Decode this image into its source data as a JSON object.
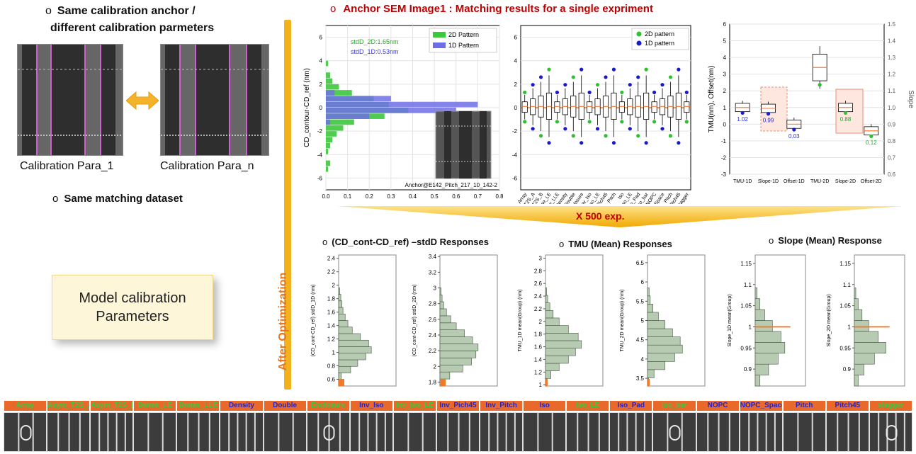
{
  "left_panel": {
    "bullet1_line1": "Same calibration anchor /",
    "bullet1_line2": "different calibration parmeters",
    "caption_left": "Calibration Para_1",
    "caption_right": "Calibration Para_n",
    "bullet2": "Same matching dataset",
    "model_box_line1": "Model calibration",
    "model_box_line2": "Parameters",
    "bullet_glyph": "o"
  },
  "header": {
    "title": "Anchor SEM Image1 : Matching results for a single expriment"
  },
  "after_optimization": "After Optimization",
  "arrow_label": "X 500 exp.",
  "section_titles": {
    "std": "(CD_cont-CD_ref) –stdD Responses",
    "tmu": "TMU (Mean) Responses",
    "slope": "Slope (Mean) Response"
  },
  "chart_data": [
    {
      "type": "bar",
      "orientation": "horizontal-histogram",
      "ylabel": "CD_contour-CD_ref (nm)",
      "ylim": [
        -7,
        7
      ],
      "xlim": [
        0,
        0.8
      ],
      "yticks": [
        "6",
        "4",
        "2",
        "0",
        "-2",
        "-4",
        "-6"
      ],
      "xticks": [
        "0.0",
        "0.1",
        "0.2",
        "0.3",
        "0.4",
        "0.5",
        "0.6",
        "0.7",
        "0.8"
      ],
      "series": [
        {
          "name": "2D Pattern",
          "color": "#3cc83c",
          "x": [
            -5.25,
            -4.75,
            -3.75,
            -3.25,
            -2.75,
            -2.25,
            -1.75,
            -1.25,
            -0.75,
            -0.25,
            0.25,
            0.75,
            1.25,
            1.75,
            2.25,
            2.75,
            3.75
          ],
          "values": [
            0.01,
            0.02,
            0.01,
            0.02,
            0.03,
            0.05,
            0.08,
            0.13,
            0.27,
            0.38,
            0.29,
            0.22,
            0.12,
            0.06,
            0.03,
            0.02,
            0.01
          ]
        },
        {
          "name": "1D Pattern",
          "color": "#6e6ee8",
          "x": [
            -1.25,
            -0.75,
            -0.25,
            0.25,
            0.75,
            1.25
          ],
          "values": [
            0.02,
            0.2,
            0.6,
            0.7,
            0.3,
            0.04
          ]
        }
      ],
      "annotations": [
        "stdD_2D:1.65nm",
        "stdD_1D:0.53nm"
      ],
      "inset_caption": "Anchor@E142_Pitch_217_10_142-2"
    },
    {
      "type": "box",
      "ylim": [
        -7,
        7
      ],
      "yticks": [
        "6",
        "4",
        "2",
        "0",
        "-2",
        "-4",
        "-6"
      ],
      "categories": [
        "Array",
        "Asym_T2S_A",
        "Asym_T2S_B",
        "Dense_LE",
        "Dense_LLE",
        "Density",
        "Double",
        "Enclosure",
        "Inv_Iso",
        "Inv_Iso_LE",
        "Inv_Pich45",
        "Inv_Pitch",
        "Iso",
        "Iso_LE",
        "Iso_Pad",
        "Iso_bar",
        "NOPC",
        "NOPC_Space",
        "Pitch",
        "Pitch45",
        "stagger"
      ],
      "legend": [
        "2D pattern",
        "1D pattern"
      ]
    },
    {
      "type": "box",
      "ylabel": "TMU(nm), Offset(nm)",
      "ylabel_right": "Slope",
      "ylim": [
        -3,
        6
      ],
      "yticks": [
        "6",
        "5",
        "4",
        "3",
        "2",
        "1",
        "0",
        "-1",
        "-2",
        "-3"
      ],
      "yticks_right": [
        "1.5",
        "1.4",
        "1.3",
        "1.2",
        "1.1",
        "1.0",
        "0.9",
        "0.8",
        "0.7",
        "0.6"
      ],
      "categories": [
        "TMU-1D",
        "Slope-1D",
        "Offset-1D",
        "TMU-2D",
        "Slope-2D",
        "Offset-2D"
      ],
      "value_labels": [
        "1.02",
        "0.99",
        "0.03",
        "",
        "0.88",
        "0.12"
      ]
    },
    {
      "type": "bar",
      "orientation": "horizontal-histogram",
      "ylabel": "(CD_cont-CD_ref) stdD_1D (nm)",
      "yticks": [
        "2.4",
        "2.2",
        "2",
        "1.8",
        "1.6",
        "1.4",
        "1.2",
        "1",
        "0.8",
        "0.6"
      ],
      "ylim": [
        0.5,
        2.45
      ]
    },
    {
      "type": "bar",
      "orientation": "horizontal-histogram",
      "ylabel": "(CD_cont-CD_ref) stdD_2D (nm)",
      "yticks": [
        "3.4",
        "3.2",
        "3",
        "2.8",
        "2.6",
        "2.4",
        "2.2",
        "2",
        "1.8"
      ],
      "ylim": [
        1.75,
        3.42
      ]
    },
    {
      "type": "bar",
      "orientation": "horizontal-histogram",
      "ylabel": "TMU_1D mean(Group) (nm)",
      "yticks": [
        "3",
        "2.8",
        "2.6",
        "2.4",
        "2.2",
        "2",
        "1.8",
        "1.6",
        "1.4",
        "1.2",
        "1"
      ],
      "ylim": [
        0.98,
        3.05
      ]
    },
    {
      "type": "bar",
      "orientation": "horizontal-histogram",
      "ylabel": "TMU_2D mean(Group) (nm)",
      "yticks": [
        "6.5",
        "6",
        "5.5",
        "5",
        "4.5",
        "4",
        "3.5"
      ],
      "ylim": [
        3.3,
        6.7
      ]
    },
    {
      "type": "bar",
      "orientation": "horizontal-histogram",
      "ylabel": "Slope_1D mean(Group)",
      "yticks": [
        "1.15",
        "1.1",
        "1.05",
        "1",
        "0.95",
        "0.9"
      ],
      "ylim": [
        0.86,
        1.17
      ]
    },
    {
      "type": "bar",
      "orientation": "horizontal-histogram",
      "ylabel": "Slope_2D mean(Group)",
      "yticks": [
        "1.15",
        "1.1",
        "1.05",
        "1",
        "0.95",
        "0.9"
      ],
      "ylim": [
        0.86,
        1.17
      ]
    }
  ],
  "patterns": [
    {
      "label": "Array",
      "color": "#3ec83e"
    },
    {
      "label": "Asym_T2S_A",
      "color": "#3ec83e"
    },
    {
      "label": "Asym_T2S_B",
      "color": "#3ec83e"
    },
    {
      "label": "Dense_LE",
      "color": "#3ec83e"
    },
    {
      "label": "Dense_LLE",
      "color": "#3ec83e"
    },
    {
      "label": "Density",
      "color": "#2424c8"
    },
    {
      "label": "Double",
      "color": "#2424c8"
    },
    {
      "label": "Enclosure",
      "color": "#3ec83e"
    },
    {
      "label": "Inv_Iso",
      "color": "#2424c8"
    },
    {
      "label": "Inv_Iso_LE",
      "color": "#3ec83e"
    },
    {
      "label": "Inv_Pich45",
      "color": "#2424c8"
    },
    {
      "label": "Inv_Pitch",
      "color": "#2424c8"
    },
    {
      "label": "Iso",
      "color": "#2424c8"
    },
    {
      "label": "Iso_LE",
      "color": "#3ec83e"
    },
    {
      "label": "Iso_Pad",
      "color": "#2424c8"
    },
    {
      "label": "Iso_bar",
      "color": "#3ec83e"
    },
    {
      "label": "NOPC",
      "color": "#2424c8"
    },
    {
      "label": "NOPC_Space",
      "color": "#2424c8"
    },
    {
      "label": "Pitch",
      "color": "#2424c8"
    },
    {
      "label": "Pitch45",
      "color": "#2424c8"
    },
    {
      "label": "stagger",
      "color": "#3ec83e"
    }
  ]
}
